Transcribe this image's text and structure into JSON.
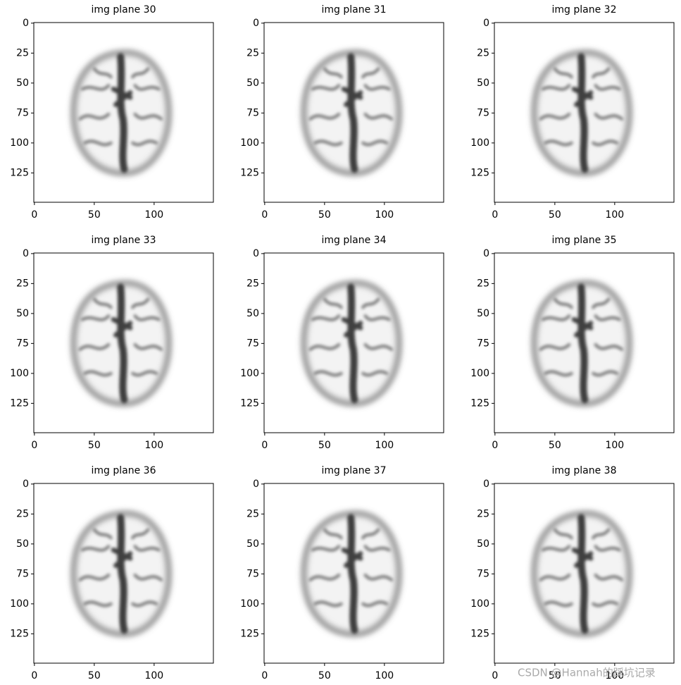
{
  "chart_data": [
    {
      "type": "image",
      "title": "img plane 30",
      "xlim": [
        -0.5,
        149.5
      ],
      "ylim": [
        149.5,
        -0.5
      ],
      "xticks": [
        0,
        50,
        100
      ],
      "yticks": [
        0,
        25,
        50,
        75,
        100,
        125
      ]
    },
    {
      "type": "image",
      "title": "img plane 31",
      "xlim": [
        -0.5,
        149.5
      ],
      "ylim": [
        149.5,
        -0.5
      ],
      "xticks": [
        0,
        50,
        100
      ],
      "yticks": [
        0,
        25,
        50,
        75,
        100,
        125
      ]
    },
    {
      "type": "image",
      "title": "img plane 32",
      "xlim": [
        -0.5,
        149.5
      ],
      "ylim": [
        149.5,
        -0.5
      ],
      "xticks": [
        0,
        50,
        100
      ],
      "yticks": [
        0,
        25,
        50,
        75,
        100,
        125
      ]
    },
    {
      "type": "image",
      "title": "img plane 33",
      "xlim": [
        -0.5,
        149.5
      ],
      "ylim": [
        149.5,
        -0.5
      ],
      "xticks": [
        0,
        50,
        100
      ],
      "yticks": [
        0,
        25,
        50,
        75,
        100,
        125
      ]
    },
    {
      "type": "image",
      "title": "img plane 34",
      "xlim": [
        -0.5,
        149.5
      ],
      "ylim": [
        149.5,
        -0.5
      ],
      "xticks": [
        0,
        50,
        100
      ],
      "yticks": [
        0,
        25,
        50,
        75,
        100,
        125
      ]
    },
    {
      "type": "image",
      "title": "img plane 35",
      "xlim": [
        -0.5,
        149.5
      ],
      "ylim": [
        149.5,
        -0.5
      ],
      "xticks": [
        0,
        50,
        100
      ],
      "yticks": [
        0,
        25,
        50,
        75,
        100,
        125
      ]
    },
    {
      "type": "image",
      "title": "img plane 36",
      "xlim": [
        -0.5,
        149.5
      ],
      "ylim": [
        149.5,
        -0.5
      ],
      "xticks": [
        0,
        50,
        100
      ],
      "yticks": [
        0,
        25,
        50,
        75,
        100,
        125
      ]
    },
    {
      "type": "image",
      "title": "img plane 37",
      "xlim": [
        -0.5,
        149.5
      ],
      "ylim": [
        149.5,
        -0.5
      ],
      "xticks": [
        0,
        50,
        100
      ],
      "yticks": [
        0,
        25,
        50,
        75,
        100,
        125
      ]
    },
    {
      "type": "image",
      "title": "img plane 38",
      "xlim": [
        -0.5,
        149.5
      ],
      "ylim": [
        149.5,
        -0.5
      ],
      "xticks": [
        0,
        50,
        100
      ],
      "yticks": [
        0,
        25,
        50,
        75,
        100,
        125
      ]
    }
  ],
  "watermark": "CSDN @Hannah的踩坑记录"
}
